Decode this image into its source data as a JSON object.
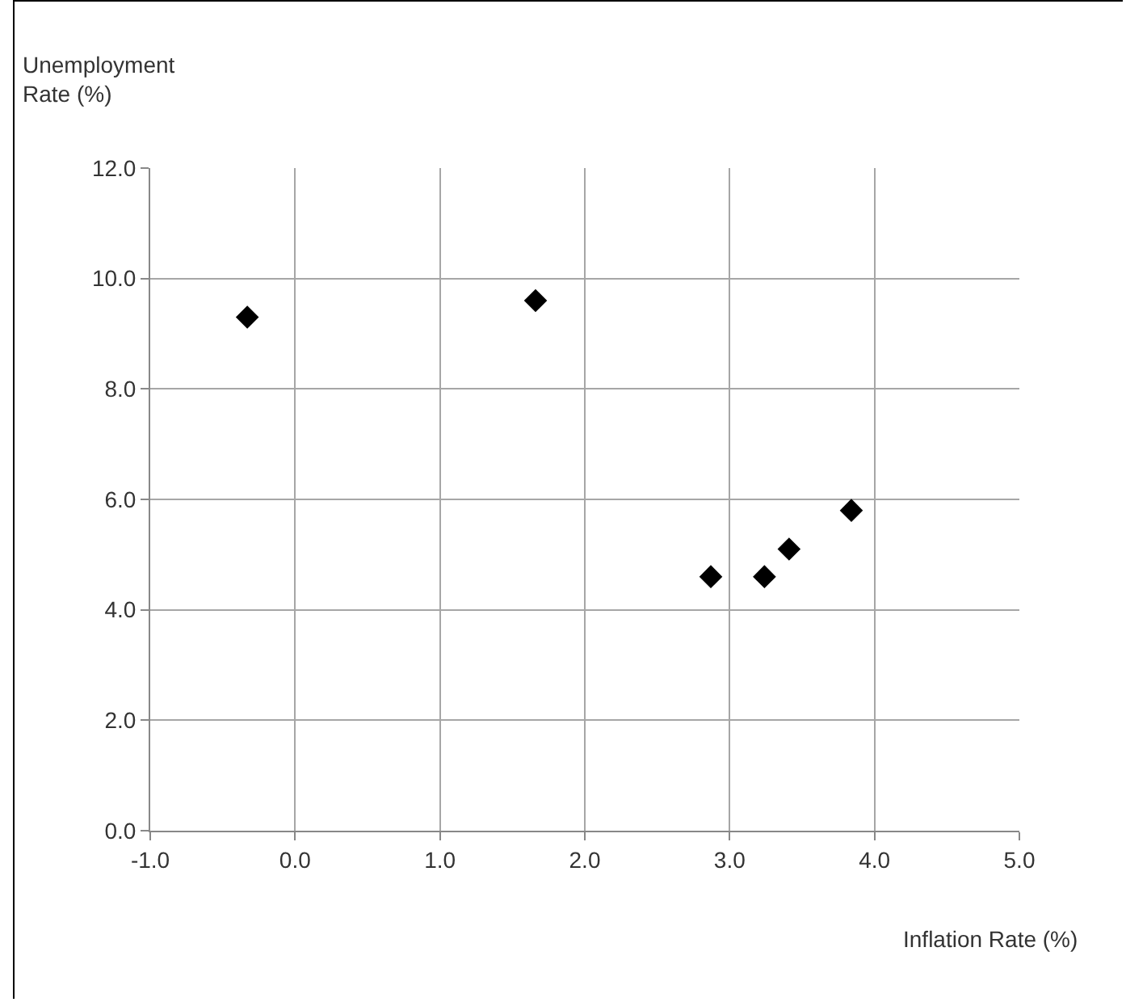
{
  "chart_data": {
    "type": "scatter",
    "xlabel": "Inflation Rate (%)",
    "ylabel": "Unemployment Rate (%)",
    "x": [
      -0.33,
      1.66,
      2.87,
      3.24,
      3.41,
      3.84
    ],
    "values": [
      9.3,
      9.6,
      4.6,
      4.6,
      5.1,
      5.8
    ],
    "color": "#000000",
    "marker": "diamond",
    "grid": true,
    "xlim": [
      -1,
      5
    ],
    "xticks": [
      {
        "value": -1,
        "label": "-1.0"
      },
      {
        "value": 0,
        "label": "0.0"
      },
      {
        "value": 1,
        "label": "1.0"
      },
      {
        "value": 2,
        "label": "2.0"
      },
      {
        "value": 3,
        "label": "3.0"
      },
      {
        "value": 4,
        "label": "4.0"
      },
      {
        "value": 5,
        "label": "5.0"
      }
    ],
    "ylim": [
      0,
      12
    ],
    "yticks": [
      {
        "value": 0,
        "label": "0.0"
      },
      {
        "value": 2,
        "label": "2.0"
      },
      {
        "value": 4,
        "label": "4.0"
      },
      {
        "value": 6,
        "label": "6.0"
      },
      {
        "value": 8,
        "label": "8.0"
      },
      {
        "value": 10,
        "label": "10.0"
      },
      {
        "value": 12,
        "label": "12.0"
      }
    ]
  }
}
